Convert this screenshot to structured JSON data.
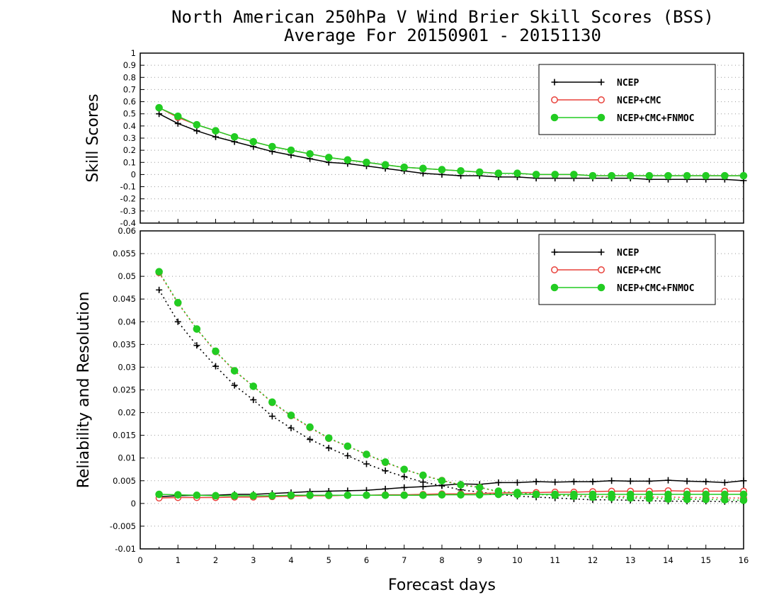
{
  "title_line1": "North American 250hPa V Wind Brier Skill Scores (BSS)",
  "title_line2": "Average For 20150901 - 20151130",
  "xlabel": "Forecast days",
  "chart_data": [
    {
      "type": "line",
      "title": "",
      "ylabel": "Skill Scores",
      "xlabel": "Forecast days",
      "xlim": [
        0,
        16
      ],
      "ylim": [
        -0.4,
        1
      ],
      "yticks": [
        "-0.4",
        "-0.3",
        "-0.2",
        "-0.1",
        "0",
        "0.1",
        "0.2",
        "0.3",
        "0.4",
        "0.5",
        "0.6",
        "0.7",
        "0.8",
        "0.9",
        "1"
      ],
      "xticks": [
        "0",
        "1",
        "2",
        "3",
        "4",
        "5",
        "6",
        "7",
        "8",
        "9",
        "10",
        "11",
        "12",
        "13",
        "14",
        "15",
        "16"
      ],
      "grid": true,
      "legend_position": "top-right",
      "x": [
        0.5,
        1,
        1.5,
        2,
        2.5,
        3,
        3.5,
        4,
        4.5,
        5,
        5.5,
        6,
        6.5,
        7,
        7.5,
        8,
        8.5,
        9,
        9.5,
        10,
        10.5,
        11,
        11.5,
        12,
        12.5,
        13,
        13.5,
        14,
        14.5,
        15,
        15.5,
        16
      ],
      "series": [
        {
          "name": "NCEP",
          "color": "#000000",
          "marker": "plus",
          "values": [
            0.5,
            0.42,
            0.36,
            0.31,
            0.27,
            0.23,
            0.19,
            0.16,
            0.13,
            0.1,
            0.09,
            0.07,
            0.05,
            0.03,
            0.01,
            0.0,
            -0.01,
            -0.01,
            -0.02,
            -0.02,
            -0.03,
            -0.03,
            -0.03,
            -0.03,
            -0.03,
            -0.03,
            -0.04,
            -0.04,
            -0.04,
            -0.04,
            -0.04,
            -0.05
          ]
        },
        {
          "name": "NCEP+CMC",
          "color": "#e8403a",
          "marker": "open-circle",
          "values": [
            0.55,
            0.47,
            0.41,
            0.36,
            0.31,
            0.27,
            0.23,
            0.2,
            0.17,
            0.14,
            0.12,
            0.1,
            0.08,
            0.06,
            0.05,
            0.04,
            0.03,
            0.02,
            0.01,
            0.01,
            0.0,
            0.0,
            0.0,
            -0.01,
            -0.01,
            -0.01,
            -0.01,
            -0.01,
            -0.01,
            -0.01,
            -0.01,
            -0.01
          ]
        },
        {
          "name": "NCEP+CMC+FNMOC",
          "color": "#22cc22",
          "marker": "filled-circle",
          "values": [
            0.55,
            0.48,
            0.41,
            0.36,
            0.31,
            0.27,
            0.23,
            0.2,
            0.17,
            0.14,
            0.12,
            0.1,
            0.08,
            0.06,
            0.05,
            0.04,
            0.03,
            0.02,
            0.01,
            0.01,
            0.0,
            0.0,
            0.0,
            -0.01,
            -0.01,
            -0.01,
            -0.01,
            -0.01,
            -0.01,
            -0.01,
            -0.01,
            -0.01
          ]
        }
      ]
    },
    {
      "type": "line",
      "title": "",
      "ylabel": "Reliability and Resolution",
      "xlabel": "Forecast days",
      "xlim": [
        0,
        16
      ],
      "ylim": [
        -0.01,
        0.06
      ],
      "yticks": [
        "-0.01",
        "-0.005",
        "0",
        "0.005",
        "0.01",
        "0.015",
        "0.02",
        "0.025",
        "0.03",
        "0.035",
        "0.04",
        "0.045",
        "0.05",
        "0.055",
        "0.06"
      ],
      "xticks": [
        "0",
        "1",
        "2",
        "3",
        "4",
        "5",
        "6",
        "7",
        "8",
        "9",
        "10",
        "11",
        "12",
        "13",
        "14",
        "15",
        "16"
      ],
      "grid": true,
      "legend_position": "top-right",
      "x": [
        0.5,
        1,
        1.5,
        2,
        2.5,
        3,
        3.5,
        4,
        4.5,
        5,
        5.5,
        6,
        6.5,
        7,
        7.5,
        8,
        8.5,
        9,
        9.5,
        10,
        10.5,
        11,
        11.5,
        12,
        12.5,
        13,
        13.5,
        14,
        14.5,
        15,
        15.5,
        16
      ],
      "series": [
        {
          "name": "NCEP",
          "color": "#000000",
          "marker": "plus",
          "linestyle": "solid",
          "values": [
            0.0015,
            0.0017,
            0.0018,
            0.0018,
            0.002,
            0.002,
            0.0022,
            0.0024,
            0.0026,
            0.0027,
            0.0028,
            0.0029,
            0.0032,
            0.0035,
            0.0037,
            0.004,
            0.0043,
            0.0042,
            0.0046,
            0.0046,
            0.0048,
            0.0047,
            0.0048,
            0.0048,
            0.005,
            0.0049,
            0.0049,
            0.0051,
            0.0049,
            0.0048,
            0.0046,
            0.005
          ]
        },
        {
          "name": "NCEP",
          "color": "#000000",
          "marker": "plus",
          "linestyle": "dotted",
          "values": [
            0.047,
            0.04,
            0.0348,
            0.0302,
            0.026,
            0.0228,
            0.0192,
            0.0166,
            0.0141,
            0.0122,
            0.0105,
            0.0087,
            0.0072,
            0.0059,
            0.0047,
            0.0039,
            0.003,
            0.0025,
            0.002,
            0.0016,
            0.0014,
            0.0012,
            0.001,
            0.0008,
            0.0008,
            0.0007,
            0.0006,
            0.0005,
            0.0005,
            0.0005,
            0.0004,
            0.0004
          ]
        },
        {
          "name": "NCEP+CMC",
          "color": "#e8403a",
          "marker": "open-circle",
          "linestyle": "solid",
          "values": [
            0.0012,
            0.0013,
            0.0013,
            0.0013,
            0.0014,
            0.0014,
            0.0015,
            0.0016,
            0.0017,
            0.0017,
            0.0018,
            0.0018,
            0.0019,
            0.0019,
            0.002,
            0.0021,
            0.0021,
            0.0022,
            0.0023,
            0.0024,
            0.0024,
            0.0025,
            0.0025,
            0.0026,
            0.0027,
            0.0027,
            0.0027,
            0.0028,
            0.0027,
            0.0027,
            0.0027,
            0.0027
          ]
        },
        {
          "name": "NCEP+CMC",
          "color": "#e8403a",
          "marker": "open-circle",
          "linestyle": "dotted",
          "values": [
            0.0508,
            0.0441,
            0.0384,
            0.0334,
            0.0292,
            0.0258,
            0.0222,
            0.0193,
            0.0167,
            0.0143,
            0.0126,
            0.0108,
            0.009,
            0.0075,
            0.0062,
            0.0051,
            0.0041,
            0.0036,
            0.0025,
            0.0024,
            0.002,
            0.0019,
            0.0017,
            0.0016,
            0.0015,
            0.0015,
            0.0014,
            0.0014,
            0.0013,
            0.0013,
            0.0012,
            0.0012
          ]
        },
        {
          "name": "NCEP+CMC+FNMOC",
          "color": "#22cc22",
          "marker": "filled-circle",
          "linestyle": "solid",
          "values": [
            0.002,
            0.0019,
            0.0018,
            0.0017,
            0.0017,
            0.0017,
            0.0017,
            0.0018,
            0.0018,
            0.0018,
            0.0018,
            0.0018,
            0.0018,
            0.0018,
            0.0018,
            0.0019,
            0.0019,
            0.0019,
            0.002,
            0.002,
            0.002,
            0.002,
            0.002,
            0.002,
            0.002,
            0.002,
            0.002,
            0.002,
            0.002,
            0.002,
            0.002,
            0.002
          ]
        },
        {
          "name": "NCEP+CMC+FNMOC",
          "color": "#22cc22",
          "marker": "filled-circle",
          "linestyle": "dotted",
          "values": [
            0.051,
            0.0442,
            0.0384,
            0.0335,
            0.0292,
            0.0258,
            0.0223,
            0.0194,
            0.0168,
            0.0144,
            0.0126,
            0.0108,
            0.0091,
            0.0075,
            0.0062,
            0.005,
            0.0041,
            0.0035,
            0.0027,
            0.0024,
            0.002,
            0.0018,
            0.0016,
            0.0014,
            0.0013,
            0.0012,
            0.0011,
            0.001,
            0.0009,
            0.0009,
            0.0008,
            0.0007
          ]
        }
      ],
      "legend": [
        "NCEP",
        "NCEP+CMC",
        "NCEP+CMC+FNMOC"
      ]
    }
  ]
}
